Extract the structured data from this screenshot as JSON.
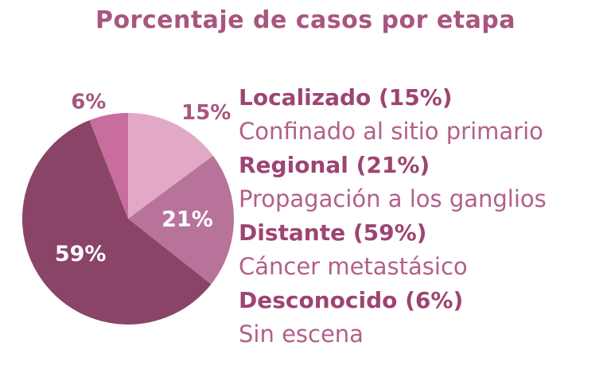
{
  "chart_data": {
    "type": "pie",
    "title": "Porcentaje de casos por etapa",
    "slices": [
      {
        "label": "15%",
        "value": 15,
        "color": "#e1a9c6",
        "label_color": "#a8557f",
        "label_outside": true
      },
      {
        "label": "21%",
        "value": 21,
        "color": "#b8739b",
        "label_color": "#ffffff",
        "label_outside": false
      },
      {
        "label": "59%",
        "value": 59,
        "color": "#8a4468",
        "label_color": "#ffffff",
        "label_outside": false
      },
      {
        "label": "6%",
        "value": 6,
        "color": "#c86d9d",
        "label_color": "#a8557f",
        "label_outside": true
      }
    ],
    "legend": [
      {
        "name": "Localizado (15%)",
        "description": "Confinado al sitio primario"
      },
      {
        "name": "Regional (21%)",
        "description": "Propagación a los ganglios"
      },
      {
        "name": "Distante (59%)",
        "description": "Cáncer metastásico"
      },
      {
        "name": "Desconocido (6%)",
        "description": "Sin escena"
      }
    ]
  }
}
